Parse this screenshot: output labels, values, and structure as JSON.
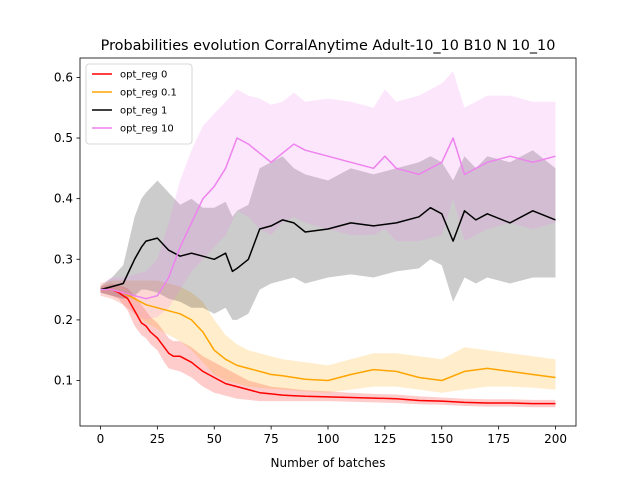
{
  "chart_data": {
    "type": "line",
    "title": "Probabilities evolution CorralAnytime Adult-10_10 B10 N 10_10",
    "xlabel": "Number of batches",
    "ylabel": "",
    "xlim": [
      -9,
      209
    ],
    "ylim": [
      0.025,
      0.632
    ],
    "xticks": [
      0,
      25,
      50,
      75,
      100,
      125,
      150,
      175,
      200
    ],
    "yticks": [
      0.1,
      0.2,
      0.3,
      0.4,
      0.5,
      0.6
    ],
    "grid": false,
    "legend_position": "top-left",
    "series": [
      {
        "name": "opt_reg 0",
        "color": "#ff0000",
        "x": [
          0,
          5,
          8,
          10,
          12,
          15,
          18,
          20,
          22,
          25,
          28,
          30,
          32,
          35,
          40,
          45,
          50,
          55,
          60,
          65,
          70,
          75,
          80,
          85,
          90,
          100,
          110,
          120,
          130,
          140,
          150,
          160,
          170,
          180,
          190,
          200
        ],
        "y": [
          0.25,
          0.25,
          0.245,
          0.24,
          0.235,
          0.215,
          0.195,
          0.19,
          0.18,
          0.17,
          0.155,
          0.145,
          0.14,
          0.14,
          0.13,
          0.115,
          0.105,
          0.095,
          0.09,
          0.085,
          0.08,
          0.078,
          0.076,
          0.075,
          0.074,
          0.073,
          0.072,
          0.071,
          0.07,
          0.067,
          0.066,
          0.064,
          0.063,
          0.063,
          0.062,
          0.062
        ],
        "lower": [
          0.245,
          0.24,
          0.235,
          0.225,
          0.215,
          0.19,
          0.175,
          0.17,
          0.16,
          0.15,
          0.13,
          0.12,
          0.118,
          0.115,
          0.105,
          0.09,
          0.08,
          0.075,
          0.07,
          0.068,
          0.066,
          0.066,
          0.066,
          0.066,
          0.066,
          0.066,
          0.065,
          0.064,
          0.063,
          0.061,
          0.06,
          0.058,
          0.057,
          0.057,
          0.056,
          0.056
        ],
        "upper": [
          0.255,
          0.26,
          0.258,
          0.255,
          0.252,
          0.24,
          0.225,
          0.215,
          0.205,
          0.195,
          0.18,
          0.17,
          0.165,
          0.165,
          0.155,
          0.14,
          0.13,
          0.12,
          0.11,
          0.1,
          0.095,
          0.09,
          0.088,
          0.086,
          0.084,
          0.082,
          0.08,
          0.078,
          0.077,
          0.074,
          0.072,
          0.07,
          0.069,
          0.069,
          0.068,
          0.068
        ]
      },
      {
        "name": "opt_reg 0.1",
        "color": "#ffa500",
        "x": [
          0,
          5,
          10,
          15,
          20,
          25,
          30,
          35,
          40,
          45,
          50,
          55,
          60,
          65,
          70,
          75,
          80,
          90,
          100,
          110,
          120,
          130,
          140,
          150,
          160,
          170,
          180,
          190,
          200
        ],
        "y": [
          0.25,
          0.25,
          0.245,
          0.235,
          0.225,
          0.22,
          0.215,
          0.21,
          0.2,
          0.18,
          0.15,
          0.135,
          0.125,
          0.12,
          0.115,
          0.11,
          0.108,
          0.102,
          0.1,
          0.11,
          0.118,
          0.115,
          0.105,
          0.1,
          0.115,
          0.12,
          0.115,
          0.11,
          0.105
        ],
        "lower": [
          0.24,
          0.235,
          0.225,
          0.21,
          0.195,
          0.185,
          0.175,
          0.165,
          0.15,
          0.13,
          0.11,
          0.1,
          0.095,
          0.09,
          0.088,
          0.086,
          0.085,
          0.082,
          0.08,
          0.085,
          0.09,
          0.09,
          0.085,
          0.08,
          0.085,
          0.09,
          0.09,
          0.088,
          0.085
        ],
        "upper": [
          0.26,
          0.265,
          0.265,
          0.265,
          0.265,
          0.265,
          0.26,
          0.255,
          0.245,
          0.23,
          0.2,
          0.175,
          0.16,
          0.15,
          0.145,
          0.14,
          0.135,
          0.13,
          0.125,
          0.135,
          0.145,
          0.145,
          0.14,
          0.135,
          0.155,
          0.15,
          0.145,
          0.14,
          0.135
        ]
      },
      {
        "name": "opt_reg 1",
        "color": "#000000",
        "x": [
          0,
          5,
          10,
          15,
          18,
          20,
          25,
          30,
          35,
          40,
          45,
          50,
          55,
          58,
          60,
          65,
          70,
          75,
          80,
          85,
          90,
          100,
          110,
          120,
          130,
          140,
          145,
          150,
          155,
          160,
          165,
          170,
          180,
          190,
          200
        ],
        "y": [
          0.25,
          0.255,
          0.26,
          0.3,
          0.32,
          0.33,
          0.335,
          0.315,
          0.305,
          0.31,
          0.305,
          0.3,
          0.31,
          0.28,
          0.285,
          0.3,
          0.35,
          0.355,
          0.365,
          0.36,
          0.345,
          0.35,
          0.36,
          0.355,
          0.36,
          0.37,
          0.385,
          0.375,
          0.33,
          0.38,
          0.365,
          0.375,
          0.36,
          0.38,
          0.365
        ],
        "lower": [
          0.245,
          0.24,
          0.235,
          0.24,
          0.25,
          0.25,
          0.245,
          0.235,
          0.23,
          0.22,
          0.22,
          0.21,
          0.22,
          0.2,
          0.2,
          0.21,
          0.25,
          0.26,
          0.265,
          0.27,
          0.26,
          0.27,
          0.275,
          0.27,
          0.28,
          0.285,
          0.3,
          0.29,
          0.23,
          0.27,
          0.26,
          0.27,
          0.26,
          0.27,
          0.27
        ],
        "upper": [
          0.255,
          0.27,
          0.29,
          0.37,
          0.4,
          0.41,
          0.43,
          0.41,
          0.39,
          0.4,
          0.385,
          0.385,
          0.395,
          0.37,
          0.38,
          0.39,
          0.45,
          0.46,
          0.47,
          0.45,
          0.44,
          0.43,
          0.45,
          0.44,
          0.45,
          0.46,
          0.47,
          0.46,
          0.43,
          0.47,
          0.45,
          0.47,
          0.46,
          0.48,
          0.45
        ]
      },
      {
        "name": "opt_reg 10",
        "color": "#ee82ee",
        "x": [
          0,
          5,
          10,
          15,
          20,
          25,
          30,
          35,
          40,
          45,
          50,
          55,
          60,
          65,
          70,
          75,
          80,
          85,
          90,
          100,
          110,
          120,
          125,
          130,
          140,
          150,
          155,
          160,
          170,
          180,
          190,
          200
        ],
        "y": [
          0.25,
          0.25,
          0.245,
          0.24,
          0.235,
          0.24,
          0.27,
          0.32,
          0.36,
          0.4,
          0.42,
          0.45,
          0.5,
          0.49,
          0.475,
          0.46,
          0.475,
          0.49,
          0.48,
          0.47,
          0.46,
          0.45,
          0.47,
          0.45,
          0.44,
          0.46,
          0.5,
          0.44,
          0.46,
          0.47,
          0.46,
          0.47
        ],
        "lower": [
          0.24,
          0.235,
          0.225,
          0.21,
          0.2,
          0.205,
          0.22,
          0.25,
          0.28,
          0.3,
          0.32,
          0.34,
          0.38,
          0.37,
          0.35,
          0.34,
          0.36,
          0.37,
          0.36,
          0.35,
          0.34,
          0.34,
          0.35,
          0.33,
          0.33,
          0.34,
          0.4,
          0.33,
          0.35,
          0.36,
          0.35,
          0.36
        ],
        "upper": [
          0.26,
          0.27,
          0.27,
          0.275,
          0.28,
          0.3,
          0.36,
          0.43,
          0.48,
          0.52,
          0.54,
          0.56,
          0.58,
          0.57,
          0.565,
          0.555,
          0.56,
          0.575,
          0.56,
          0.565,
          0.56,
          0.55,
          0.58,
          0.56,
          0.57,
          0.59,
          0.61,
          0.55,
          0.57,
          0.57,
          0.56,
          0.56
        ]
      }
    ]
  }
}
